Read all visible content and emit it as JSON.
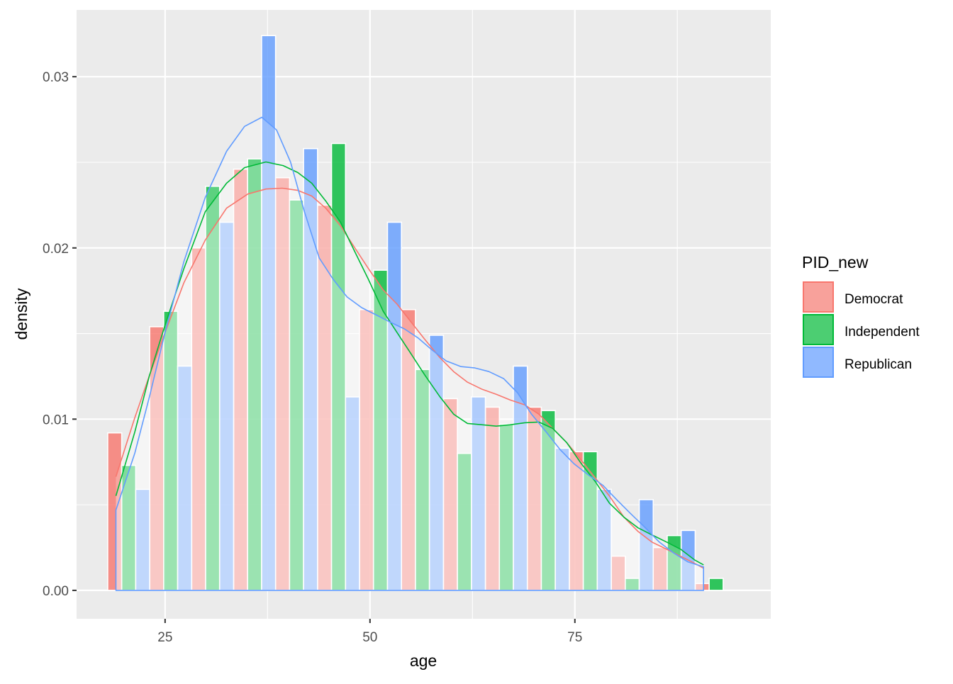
{
  "chart_data": {
    "type": "histogram_with_density",
    "title": "",
    "xlabel": "age",
    "ylabel": "density",
    "xlim": [
      14.2,
      98.9
    ],
    "ylim": [
      -0.00166,
      0.0339
    ],
    "x_ticks": [
      25,
      50,
      75
    ],
    "x_tick_labels": [
      "25",
      "50",
      "75"
    ],
    "x_minor": [
      37.5,
      62.5,
      87.5
    ],
    "y_ticks": [
      0.0,
      0.01,
      0.02,
      0.03
    ],
    "y_tick_labels": [
      "0.00",
      "0.01",
      "0.02",
      "0.03"
    ],
    "y_minor": [
      0.005,
      0.015,
      0.025
    ],
    "grid": true,
    "bins": {
      "start": 18.0,
      "width": 5.12,
      "count": 15,
      "position": "dodge"
    },
    "series": [
      {
        "name": "Democrat",
        "color": "#F8766D",
        "bar_values": [
          0.0092,
          0.0154,
          0.02,
          0.0246,
          0.0241,
          0.0225,
          0.0164,
          0.0164,
          0.0112,
          0.0107,
          0.0107,
          0.0081,
          0.002,
          0.0025,
          0.0004
        ],
        "density": [
          [
            19.0,
            0.00664
          ],
          [
            21.3,
            0.01008
          ],
          [
            23.1,
            0.01257
          ],
          [
            25.0,
            0.01506
          ],
          [
            27.3,
            0.01797
          ],
          [
            29.9,
            0.02046
          ],
          [
            32.5,
            0.02232
          ],
          [
            35.1,
            0.02315
          ],
          [
            37.3,
            0.02344
          ],
          [
            39.3,
            0.02349
          ],
          [
            41.2,
            0.02336
          ],
          [
            42.9,
            0.02303
          ],
          [
            44.6,
            0.02232
          ],
          [
            46.4,
            0.02129
          ],
          [
            48.1,
            0.02004
          ],
          [
            49.8,
            0.0188
          ],
          [
            51.6,
            0.01755
          ],
          [
            53.3,
            0.01672
          ],
          [
            55.0,
            0.01568
          ],
          [
            56.7,
            0.01465
          ],
          [
            58.5,
            0.01361
          ],
          [
            60.2,
            0.01278
          ],
          [
            61.9,
            0.01216
          ],
          [
            63.7,
            0.01174
          ],
          [
            65.4,
            0.01145
          ],
          [
            67.1,
            0.01112
          ],
          [
            68.9,
            0.01083
          ],
          [
            70.6,
            0.01029
          ],
          [
            72.3,
            0.00946
          ],
          [
            74.0,
            0.00863
          ],
          [
            75.8,
            0.00759
          ],
          [
            77.5,
            0.00656
          ],
          [
            79.2,
            0.00552
          ],
          [
            81.0,
            0.00427
          ],
          [
            82.7,
            0.00344
          ],
          [
            84.4,
            0.00282
          ],
          [
            86.2,
            0.0024
          ],
          [
            87.9,
            0.00199
          ],
          [
            89.6,
            0.00158
          ],
          [
            90.7,
            0.00129
          ]
        ]
      },
      {
        "name": "Independent",
        "color": "#00BA38",
        "bar_values": [
          0.0073,
          0.0163,
          0.0236,
          0.0252,
          0.0228,
          0.0261,
          0.0187,
          0.0129,
          0.008,
          0.0097,
          0.0105,
          0.0081,
          0.0007,
          0.0032,
          0.0007
        ],
        "density": [
          [
            19.0,
            0.00552
          ],
          [
            21.3,
            0.00925
          ],
          [
            23.1,
            0.01257
          ],
          [
            25.0,
            0.0155
          ],
          [
            27.3,
            0.0188
          ],
          [
            29.9,
            0.02212
          ],
          [
            32.5,
            0.02378
          ],
          [
            34.7,
            0.02469
          ],
          [
            37.3,
            0.02502
          ],
          [
            39.4,
            0.02481
          ],
          [
            41.2,
            0.0244
          ],
          [
            42.9,
            0.02378
          ],
          [
            44.6,
            0.02274
          ],
          [
            46.4,
            0.0215
          ],
          [
            48.1,
            0.01983
          ],
          [
            49.8,
            0.01817
          ],
          [
            51.6,
            0.01631
          ],
          [
            53.3,
            0.01506
          ],
          [
            55.0,
            0.01382
          ],
          [
            56.7,
            0.01257
          ],
          [
            58.5,
            0.01133
          ],
          [
            60.2,
            0.01029
          ],
          [
            61.9,
            0.00975
          ],
          [
            63.7,
            0.00967
          ],
          [
            65.4,
            0.00959
          ],
          [
            67.1,
            0.00967
          ],
          [
            68.9,
            0.00979
          ],
          [
            70.6,
            0.00983
          ],
          [
            72.3,
            0.00946
          ],
          [
            74.0,
            0.00863
          ],
          [
            75.8,
            0.00739
          ],
          [
            77.5,
            0.00635
          ],
          [
            79.2,
            0.0051
          ],
          [
            81.0,
            0.00427
          ],
          [
            82.7,
            0.00365
          ],
          [
            84.4,
            0.00324
          ],
          [
            86.2,
            0.00282
          ],
          [
            87.9,
            0.0024
          ],
          [
            89.6,
            0.00178
          ],
          [
            90.7,
            0.00149
          ]
        ]
      },
      {
        "name": "Republican",
        "color": "#619CFF",
        "bar_values": [
          0.0059,
          0.0131,
          0.0215,
          0.0324,
          0.0258,
          0.0113,
          0.0215,
          0.0149,
          0.0113,
          0.0131,
          0.0083,
          0.0059,
          0.0053,
          0.0035,
          0.0
        ],
        "density": [
          [
            19.0,
            0.00469
          ],
          [
            21.3,
            0.00801
          ],
          [
            23.1,
            0.01133
          ],
          [
            25.0,
            0.01506
          ],
          [
            27.3,
            0.01921
          ],
          [
            29.9,
            0.02295
          ],
          [
            32.5,
            0.02564
          ],
          [
            34.7,
            0.0271
          ],
          [
            36.8,
            0.02763
          ],
          [
            38.6,
            0.02689
          ],
          [
            40.3,
            0.02502
          ],
          [
            42.0,
            0.02212
          ],
          [
            43.8,
            0.01942
          ],
          [
            45.5,
            0.01817
          ],
          [
            47.2,
            0.01714
          ],
          [
            49.0,
            0.01651
          ],
          [
            50.7,
            0.0161
          ],
          [
            52.4,
            0.01568
          ],
          [
            54.2,
            0.01527
          ],
          [
            55.9,
            0.01473
          ],
          [
            57.6,
            0.01403
          ],
          [
            59.3,
            0.0134
          ],
          [
            61.1,
            0.01307
          ],
          [
            62.8,
            0.01299
          ],
          [
            64.5,
            0.01278
          ],
          [
            66.3,
            0.01237
          ],
          [
            68.0,
            0.01154
          ],
          [
            69.7,
            0.01029
          ],
          [
            71.5,
            0.00925
          ],
          [
            73.2,
            0.00822
          ],
          [
            74.9,
            0.00739
          ],
          [
            76.6,
            0.00676
          ],
          [
            78.4,
            0.00614
          ],
          [
            80.1,
            0.0053
          ],
          [
            81.8,
            0.00448
          ],
          [
            83.6,
            0.00365
          ],
          [
            85.3,
            0.00282
          ],
          [
            87.0,
            0.0022
          ],
          [
            88.8,
            0.00166
          ],
          [
            90.7,
            0.00137
          ]
        ]
      }
    ],
    "legend": {
      "title": "PID_new",
      "position": "right",
      "entries": [
        "Democrat",
        "Independent",
        "Republican"
      ]
    }
  },
  "legend": {
    "title": "PID_new",
    "items": [
      {
        "label": "Democrat",
        "fill": "#F8A19B",
        "stroke": "#F8766D"
      },
      {
        "label": "Independent",
        "fill": "#4CCE72",
        "stroke": "#00BA38"
      },
      {
        "label": "Republican",
        "fill": "#90B9FF",
        "stroke": "#619CFF"
      }
    ]
  },
  "axes": {
    "x_title": "age",
    "y_title": "density"
  }
}
